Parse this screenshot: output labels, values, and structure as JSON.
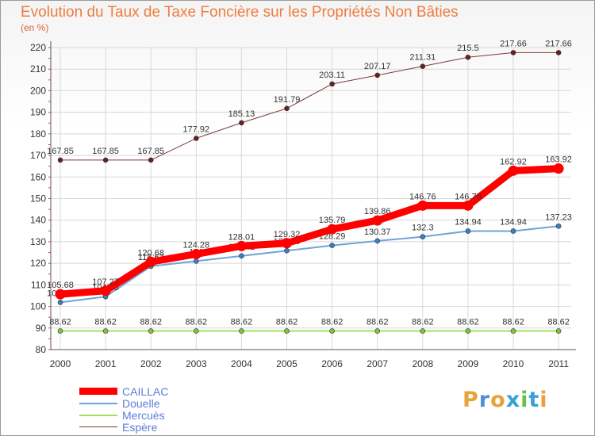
{
  "header": {
    "title": "Evolution du Taux de Taxe Foncière sur les Propriétés Non Bâties",
    "unit": "(en %)"
  },
  "logo": {
    "letters": [
      "P",
      "r",
      "o",
      "x",
      "i",
      "t",
      "i"
    ],
    "colors": [
      "#e8a23a",
      "#4f8fd8",
      "#e8a23a",
      "#3aa0d8",
      "#6cc04a",
      "#3aa0d8",
      "#e8a23a"
    ]
  },
  "chart_data": {
    "type": "line",
    "x": [
      "2000",
      "2001",
      "2002",
      "2003",
      "2004",
      "2005",
      "2006",
      "2007",
      "2008",
      "2009",
      "2010",
      "2011"
    ],
    "ylim": [
      80,
      220
    ],
    "yticks": [
      80,
      90,
      100,
      110,
      120,
      130,
      140,
      150,
      160,
      170,
      180,
      190,
      200,
      210,
      220
    ],
    "grid": true,
    "legend_position": "bottom-left",
    "series": [
      {
        "name": "Espère",
        "color": "#7a3a3a",
        "width": 1,
        "marker": "#6b1f1f",
        "values": [
          167.85,
          167.85,
          167.85,
          177.92,
          185.13,
          191.79,
          203.11,
          207.17,
          211.31,
          215.5,
          217.66,
          217.66
        ],
        "labels": [
          "167.85",
          "167.85",
          "167.85",
          "177.92",
          "185.13",
          "191.79",
          "203.11",
          "207.17",
          "211.31",
          "215.5",
          "217.66",
          "217.66"
        ]
      },
      {
        "name": "Mercuès",
        "color": "#a6dc6a",
        "width": 2,
        "marker": "#7fc63a",
        "values": [
          88.62,
          88.62,
          88.62,
          88.62,
          88.62,
          88.62,
          88.62,
          88.62,
          88.62,
          88.62,
          88.62,
          88.62
        ],
        "labels": [
          "88.62",
          "88.62",
          "88.62",
          "88.62",
          "88.62",
          "88.62",
          "88.62",
          "88.62",
          "88.62",
          "88.62",
          "88.62",
          "88.62"
        ]
      },
      {
        "name": "Douelle",
        "color": "#6fa4d8",
        "width": 2,
        "marker": "#3c7fc4",
        "values": [
          101.89,
          104.53,
          118.63,
          121,
          123.42,
          125.85,
          128.29,
          130.37,
          132.3,
          134.94,
          134.94,
          137.23
        ],
        "labels": [
          "101.89",
          "104.53",
          "118.63",
          "121",
          "123.42",
          "125.85",
          "128.29",
          "130.37",
          "132.3",
          "134.94",
          "134.94",
          "137.23"
        ]
      },
      {
        "name": "CAILLAC",
        "color": "#ff0000",
        "width": 9,
        "marker": "#ff0000",
        "values": [
          105.68,
          107.27,
          120.68,
          124.28,
          128.01,
          129.32,
          135.79,
          139.86,
          146.76,
          146.76,
          162.92,
          163.92
        ],
        "labels": [
          "105.68",
          "107.27",
          "120.68",
          "124.28",
          "128.01",
          "129.32",
          "135.79",
          "139.86",
          "146.76",
          "146.76",
          "162.92",
          "163.92"
        ]
      }
    ]
  },
  "legend": [
    {
      "name": "CAILLAC",
      "color": "#ff0000",
      "width": 9
    },
    {
      "name": "Douelle",
      "color": "#6fa4d8",
      "width": 2
    },
    {
      "name": "Mercuès",
      "color": "#a6dc6a",
      "width": 2
    },
    {
      "name": "Espère",
      "color": "#7a3a3a",
      "width": 1
    }
  ]
}
